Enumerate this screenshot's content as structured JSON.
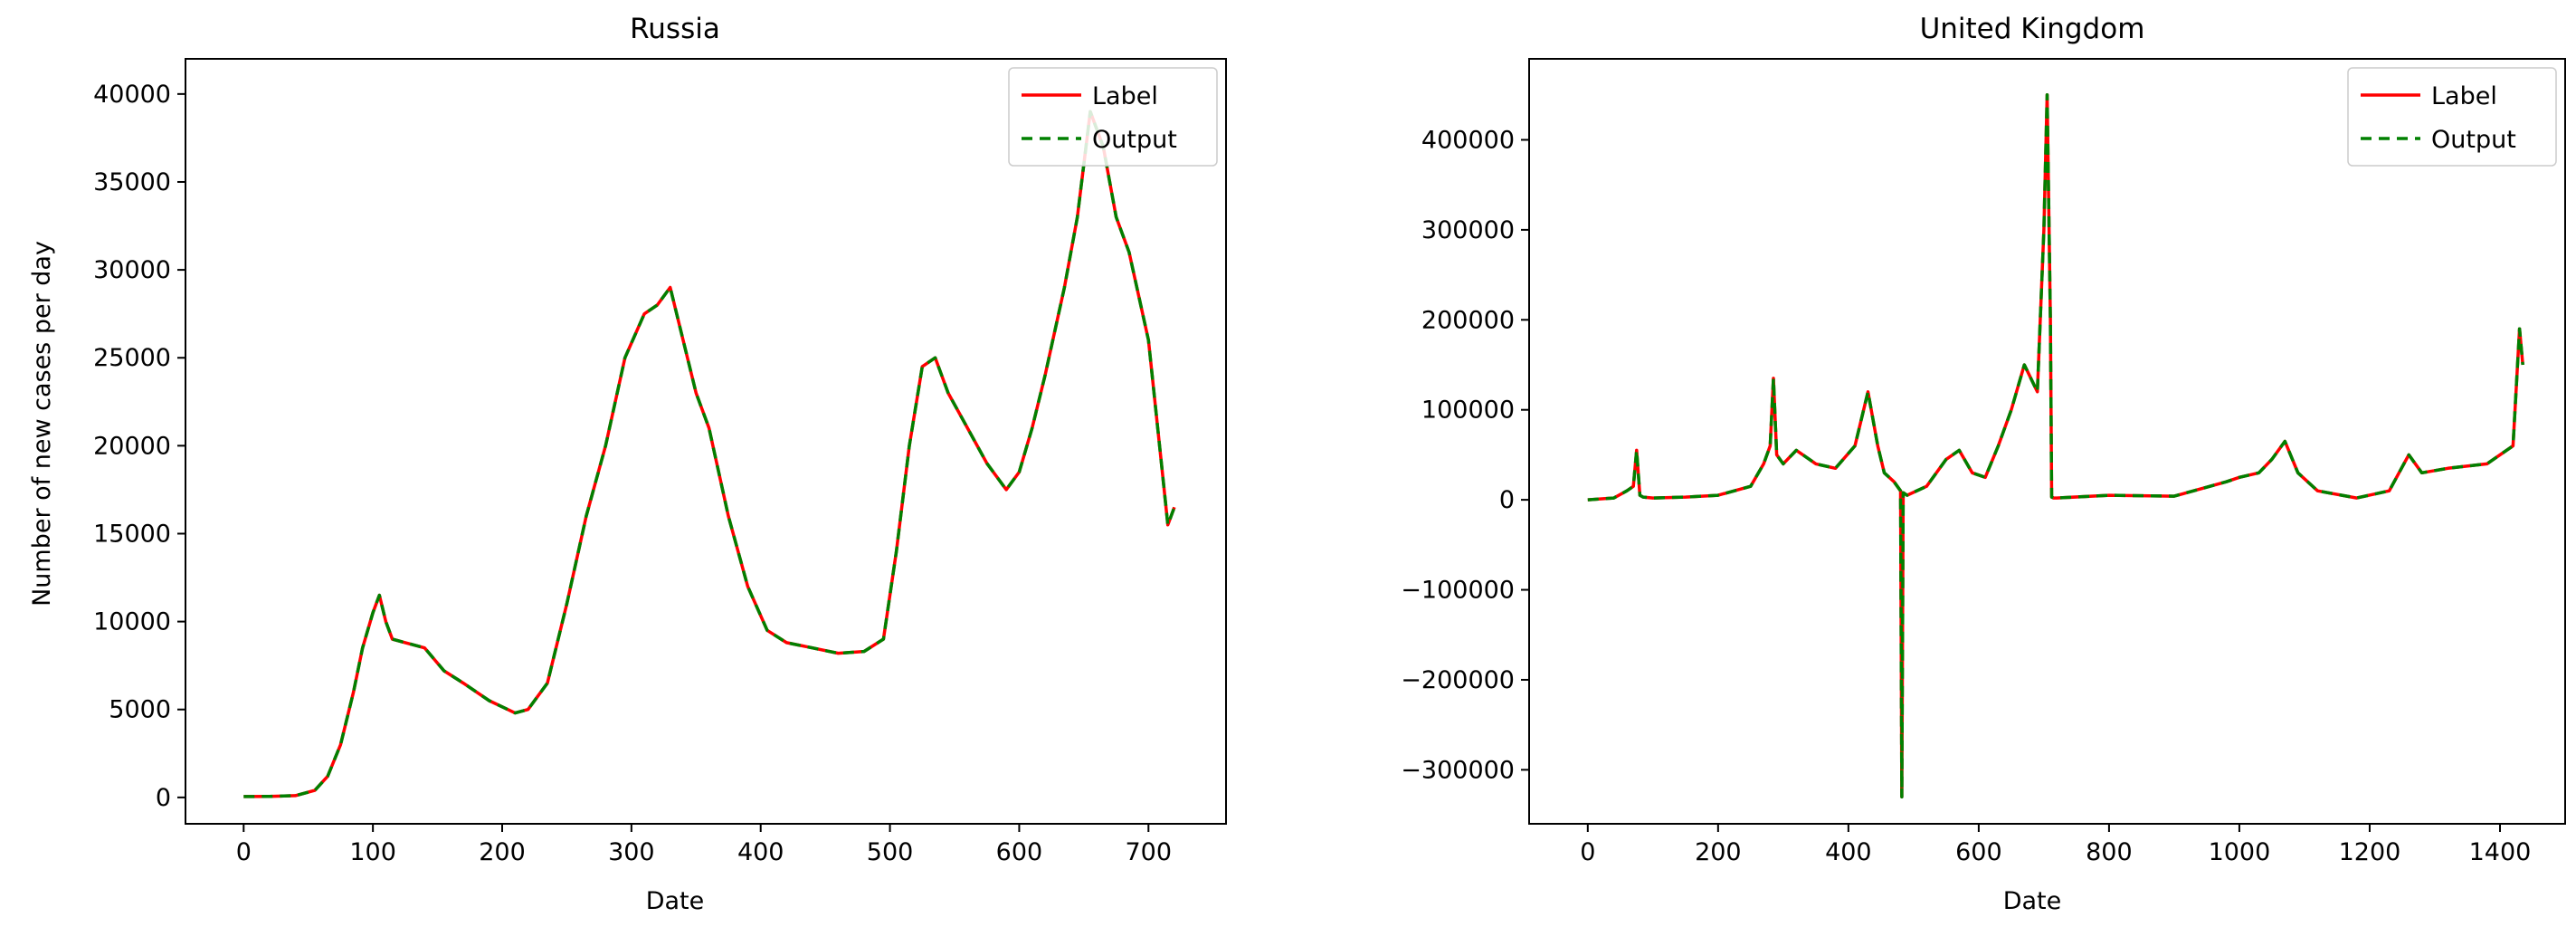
{
  "chart_data": [
    {
      "type": "line",
      "title": "Russia",
      "xlabel": "Date",
      "ylabel": "Number of new cases per day",
      "xlim": [
        -45,
        760
      ],
      "ylim": [
        -1500,
        42000
      ],
      "xticks": [
        0,
        100,
        200,
        300,
        400,
        500,
        600,
        700
      ],
      "yticks": [
        0,
        5000,
        10000,
        15000,
        20000,
        25000,
        30000,
        35000,
        40000
      ],
      "xtick_labels": [
        "0",
        "100",
        "200",
        "300",
        "400",
        "500",
        "600",
        "700"
      ],
      "ytick_labels": [
        "0",
        "5000",
        "10000",
        "15000",
        "20000",
        "25000",
        "30000",
        "35000",
        "40000"
      ],
      "legend": {
        "position": "top-right",
        "entries": [
          "Label",
          "Output"
        ]
      },
      "series": [
        {
          "name": "Label",
          "color": "#ff0000",
          "style": "solid",
          "x": [
            0,
            20,
            40,
            55,
            65,
            75,
            85,
            92,
            100,
            105,
            110,
            115,
            125,
            140,
            155,
            170,
            190,
            210,
            220,
            235,
            250,
            265,
            280,
            295,
            310,
            320,
            330,
            340,
            350,
            360,
            375,
            390,
            405,
            420,
            440,
            460,
            480,
            495,
            505,
            515,
            525,
            535,
            545,
            560,
            575,
            590,
            600,
            610,
            620,
            635,
            645,
            655,
            665,
            675,
            685,
            700,
            710,
            715,
            720
          ],
          "y": [
            50,
            60,
            100,
            400,
            1200,
            3000,
            6000,
            8500,
            10500,
            11500,
            10000,
            9000,
            8800,
            8500,
            7200,
            6500,
            5500,
            4800,
            5000,
            6500,
            11000,
            16000,
            20000,
            25000,
            27500,
            28000,
            29000,
            26000,
            23000,
            21000,
            16000,
            12000,
            9500,
            8800,
            8500,
            8200,
            8300,
            9000,
            14000,
            20000,
            24500,
            25000,
            23000,
            21000,
            19000,
            17500,
            18500,
            21000,
            24000,
            29000,
            33000,
            39000,
            37000,
            33000,
            31000,
            26000,
            19000,
            15500,
            16500
          ]
        },
        {
          "name": "Output",
          "color": "#008000",
          "style": "dashed",
          "x": [
            0,
            20,
            40,
            55,
            65,
            75,
            85,
            92,
            100,
            105,
            110,
            115,
            125,
            140,
            155,
            170,
            190,
            210,
            220,
            235,
            250,
            265,
            280,
            295,
            310,
            320,
            330,
            340,
            350,
            360,
            375,
            390,
            405,
            420,
            440,
            460,
            480,
            495,
            505,
            515,
            525,
            535,
            545,
            560,
            575,
            590,
            600,
            610,
            620,
            635,
            645,
            655,
            665,
            675,
            685,
            700,
            710,
            715,
            720
          ],
          "y": [
            50,
            60,
            100,
            400,
            1200,
            3000,
            6000,
            8500,
            10500,
            11500,
            10000,
            9000,
            8800,
            8500,
            7200,
            6500,
            5500,
            4800,
            5000,
            6500,
            11000,
            16000,
            20000,
            25000,
            27500,
            28000,
            29000,
            26000,
            23000,
            21000,
            16000,
            12000,
            9500,
            8800,
            8500,
            8200,
            8300,
            9000,
            14000,
            20000,
            24500,
            25000,
            23000,
            21000,
            19000,
            17500,
            18500,
            21000,
            24000,
            29000,
            33000,
            39000,
            37000,
            33000,
            31000,
            26000,
            19000,
            15500,
            16500
          ]
        }
      ]
    },
    {
      "type": "line",
      "title": "United Kingdom",
      "xlabel": "Date",
      "ylabel": "",
      "xlim": [
        -90,
        1500
      ],
      "ylim": [
        -360000,
        490000
      ],
      "xticks": [
        0,
        200,
        400,
        600,
        800,
        1000,
        1200,
        1400
      ],
      "yticks": [
        -300000,
        -200000,
        -100000,
        0,
        100000,
        200000,
        300000,
        400000
      ],
      "xtick_labels": [
        "0",
        "200",
        "400",
        "600",
        "800",
        "1000",
        "1200",
        "1400"
      ],
      "ytick_labels": [
        "−300000",
        "−200000",
        "−100000",
        "0",
        "100000",
        "200000",
        "300000",
        "400000"
      ],
      "legend": {
        "position": "top-right",
        "entries": [
          "Label",
          "Output"
        ]
      },
      "series": [
        {
          "name": "Label",
          "color": "#ff0000",
          "style": "solid",
          "x": [
            0,
            40,
            60,
            70,
            75,
            80,
            85,
            100,
            150,
            200,
            250,
            270,
            280,
            285,
            290,
            300,
            320,
            350,
            380,
            410,
            430,
            445,
            455,
            470,
            480,
            482,
            484,
            490,
            520,
            550,
            570,
            590,
            610,
            630,
            650,
            670,
            690,
            700,
            705,
            710,
            712,
            715,
            720,
            800,
            900,
            980,
            1000,
            1030,
            1050,
            1070,
            1090,
            1120,
            1180,
            1230,
            1260,
            1280,
            1320,
            1380,
            1420,
            1430,
            1435
          ],
          "y": [
            0,
            2000,
            10000,
            15000,
            55000,
            5000,
            3000,
            2000,
            3000,
            5000,
            15000,
            40000,
            60000,
            135000,
            50000,
            40000,
            55000,
            40000,
            35000,
            60000,
            120000,
            60000,
            30000,
            20000,
            10000,
            -330000,
            8000,
            5000,
            15000,
            45000,
            55000,
            30000,
            25000,
            60000,
            100000,
            150000,
            120000,
            300000,
            450000,
            200000,
            3000,
            2000,
            2000,
            5000,
            4000,
            20000,
            25000,
            30000,
            45000,
            65000,
            30000,
            10000,
            2000,
            10000,
            50000,
            30000,
            35000,
            40000,
            60000,
            190000,
            150000
          ]
        },
        {
          "name": "Output",
          "color": "#008000",
          "style": "dashed",
          "x": [
            0,
            40,
            60,
            70,
            75,
            80,
            85,
            100,
            150,
            200,
            250,
            270,
            280,
            285,
            290,
            300,
            320,
            350,
            380,
            410,
            430,
            445,
            455,
            470,
            480,
            482,
            484,
            490,
            520,
            550,
            570,
            590,
            610,
            630,
            650,
            670,
            690,
            700,
            705,
            710,
            712,
            715,
            720,
            800,
            900,
            980,
            1000,
            1030,
            1050,
            1070,
            1090,
            1120,
            1180,
            1230,
            1260,
            1280,
            1320,
            1380,
            1420,
            1430,
            1435
          ],
          "y": [
            0,
            2000,
            10000,
            15000,
            55000,
            5000,
            3000,
            2000,
            3000,
            5000,
            15000,
            40000,
            60000,
            135000,
            50000,
            40000,
            55000,
            40000,
            35000,
            60000,
            120000,
            60000,
            30000,
            20000,
            10000,
            -330000,
            8000,
            5000,
            15000,
            45000,
            55000,
            30000,
            25000,
            60000,
            100000,
            150000,
            120000,
            300000,
            450000,
            200000,
            3000,
            2000,
            2000,
            5000,
            4000,
            20000,
            25000,
            30000,
            45000,
            65000,
            30000,
            10000,
            2000,
            10000,
            50000,
            30000,
            35000,
            40000,
            60000,
            190000,
            150000
          ]
        }
      ]
    }
  ]
}
